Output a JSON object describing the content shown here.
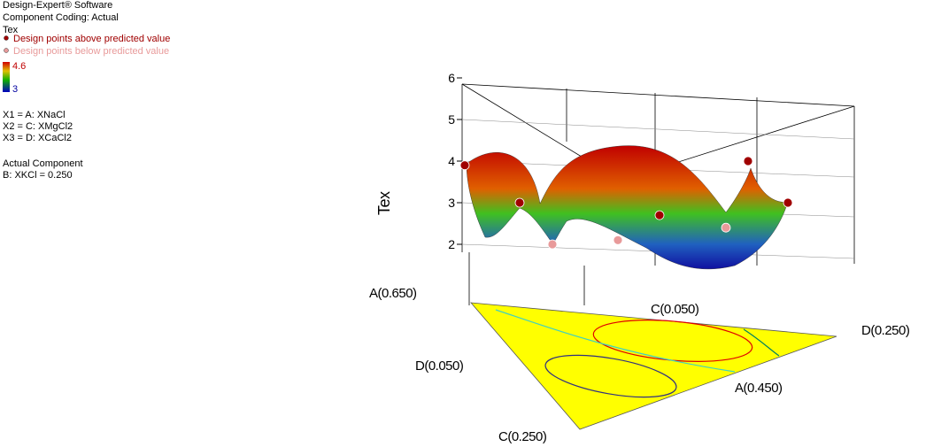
{
  "chart_data": {
    "type": "surface3d",
    "software": "Design-Expert® Software",
    "coding": "Component Coding: Actual",
    "response": "Tex",
    "colorbar": {
      "max": 4.6,
      "min": 3
    },
    "factors": [
      "X1 = A: XNaCl",
      "X2 = C: XMgCl2",
      "X3 = D: XCaCl2"
    ],
    "actual_component_title": "Actual Component",
    "actual_component": "B: XKCl = 0.250",
    "zlabel": "Tex",
    "zlim": [
      2,
      6
    ],
    "zticks": [
      2,
      3,
      4,
      5,
      6
    ],
    "axis_labels": [
      "A(0.650)",
      "C(0.050)",
      "D(0.250)",
      "D(0.050)",
      "A(0.450)",
      "C(0.250)"
    ],
    "series": [
      {
        "name": "Design points above predicted value",
        "color": "#a00000",
        "values": [
          3.9,
          3.0,
          2.7,
          4.0,
          3.0
        ]
      },
      {
        "name": "Design points below predicted value",
        "color": "#e89a9a",
        "values": [
          2.0,
          2.1,
          2.4
        ]
      }
    ]
  }
}
